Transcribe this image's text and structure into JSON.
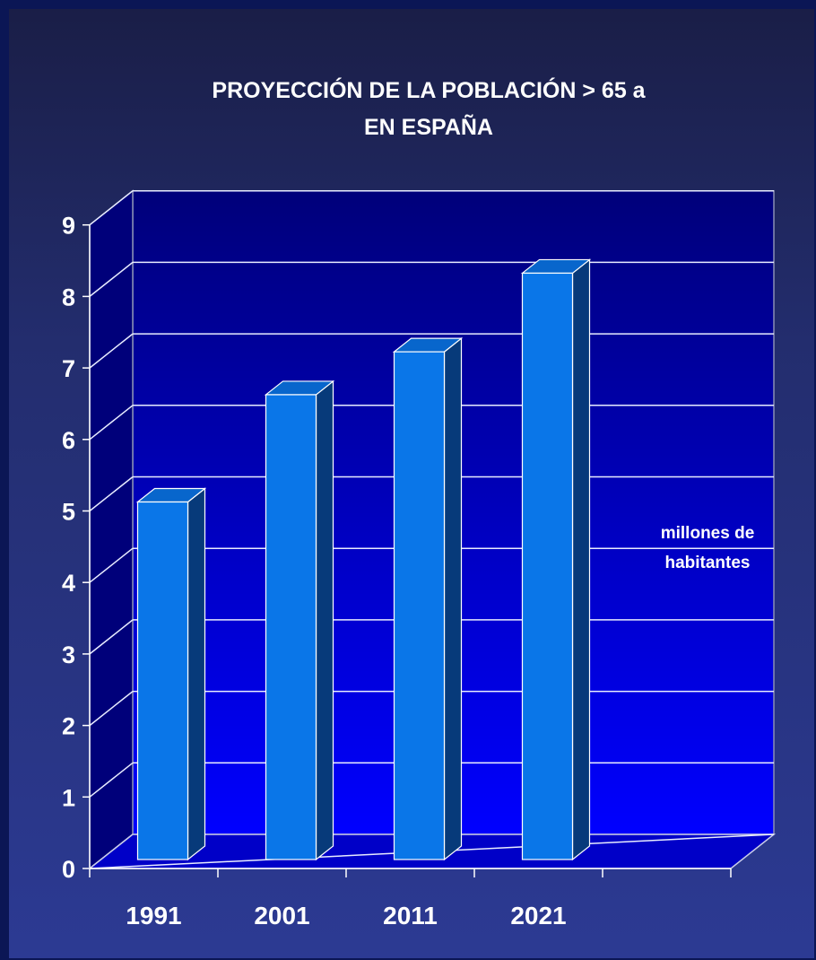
{
  "chart_data": {
    "type": "bar",
    "title_lines": [
      "PROYECCIÓN DE LA POBLACIÓN  > 65 a",
      "EN ESPAÑA"
    ],
    "categories": [
      "1991",
      "2001",
      "2011",
      "2021"
    ],
    "values": [
      5.0,
      6.5,
      7.1,
      8.2
    ],
    "ylim": [
      0,
      9
    ],
    "yticks": [
      "0",
      "1",
      "2",
      "3",
      "4",
      "5",
      "6",
      "7",
      "8",
      "9"
    ],
    "unit_label_lines": [
      "millones de",
      "habitantes"
    ],
    "grid": true,
    "colors": {
      "bar_front": "#0a76e8",
      "bar_side": "#073a7a",
      "bar_top": "#0866cc",
      "wall_top": "#00007a",
      "wall_bottom": "#0000ff",
      "floor": "#0000c8"
    }
  }
}
